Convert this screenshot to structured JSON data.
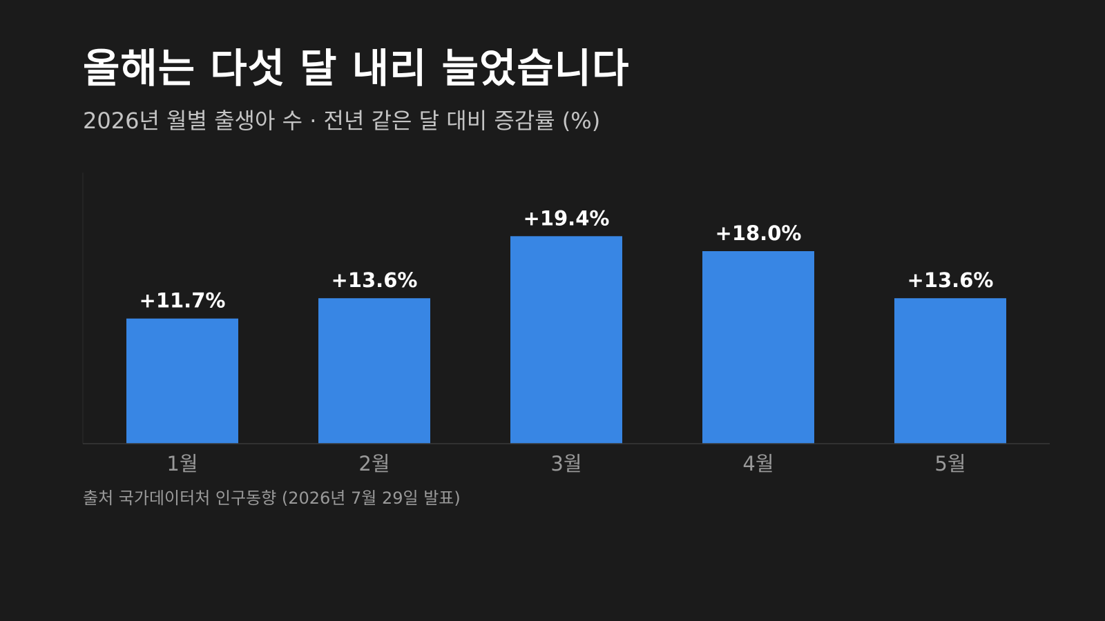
{
  "header": {
    "title": "올해는 다섯 달 내리 늘었습니다",
    "subtitle": "2026년 월별 출생아 수 · 전년 같은 달 대비 증감률 (%)"
  },
  "footer": {
    "source": "출처 국가데이터처 인구동향 (2026년 7월 29일 발표)"
  },
  "colors": {
    "background": "#1b1b1b",
    "bar": "#3886e4",
    "axis": "#3a3a3a",
    "value_label": "#ffffff",
    "tick_label": "#9a9a9a"
  },
  "chart_data": {
    "type": "bar",
    "categories": [
      "1월",
      "2월",
      "3월",
      "4월",
      "5월"
    ],
    "values": [
      11.7,
      13.6,
      19.4,
      18.0,
      13.6
    ],
    "value_labels": [
      "+11.7%",
      "+13.6%",
      "+19.4%",
      "+18.0%",
      "+13.6%"
    ],
    "ylim": [
      0,
      25
    ],
    "grid": false,
    "legend": "none"
  }
}
